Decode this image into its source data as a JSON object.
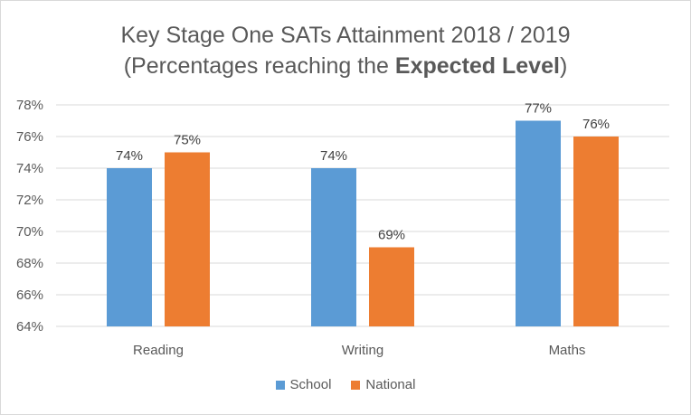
{
  "chart_data": {
    "type": "bar",
    "title_line1": "Key Stage One SATs Attainment 2018 / 2019",
    "title_line2_prefix": "(Percentages reaching the ",
    "title_line2_bold": "Expected Level",
    "title_line2_suffix": ")",
    "categories": [
      "Reading",
      "Writing",
      "Maths"
    ],
    "series": [
      {
        "name": "School",
        "values": [
          74,
          74,
          77
        ],
        "labels": [
          "74%",
          "74%",
          "77%"
        ],
        "color": "#5b9bd5"
      },
      {
        "name": "National",
        "values": [
          75,
          69,
          76
        ],
        "labels": [
          "75%",
          "69%",
          "76%"
        ],
        "color": "#ed7d31"
      }
    ],
    "y_ticks": [
      64,
      66,
      68,
      70,
      72,
      74,
      76,
      78
    ],
    "y_tick_labels": [
      "64%",
      "66%",
      "68%",
      "70%",
      "72%",
      "74%",
      "76%",
      "78%"
    ],
    "ylim": [
      64,
      78
    ],
    "grid": true,
    "legend_position": "bottom"
  }
}
